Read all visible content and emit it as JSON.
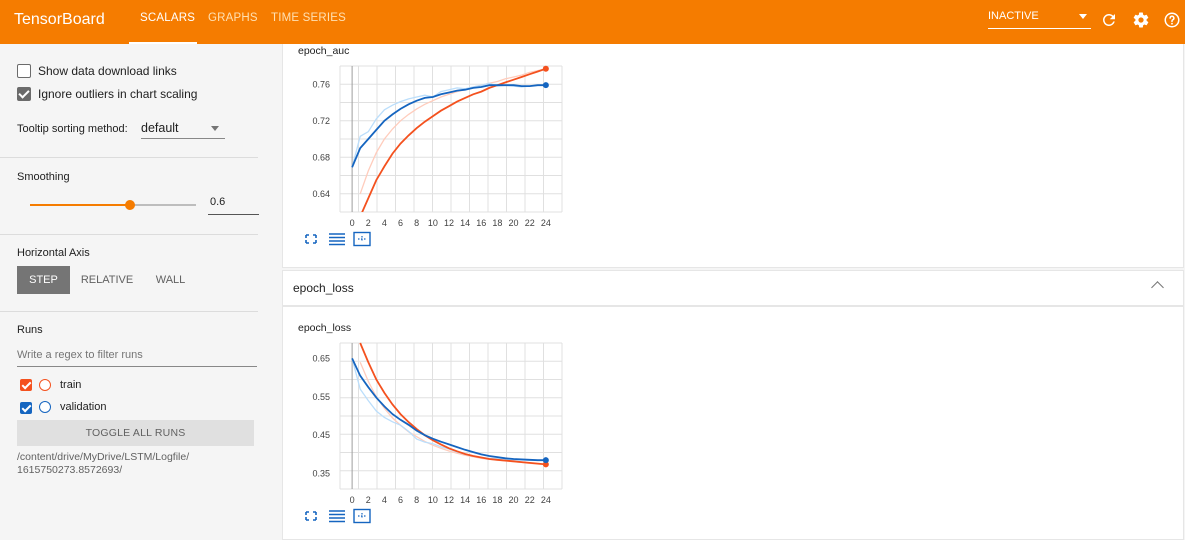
{
  "header": {
    "brand": "TensorBoard",
    "tabs": [
      {
        "label": "SCALARS",
        "active": true
      },
      {
        "label": "GRAPHS",
        "active": false
      },
      {
        "label": "TIME SERIES",
        "active": false
      }
    ],
    "status_select": "INACTIVE",
    "icons": [
      "refresh-icon",
      "gear-icon",
      "help-icon"
    ],
    "accent_color": "#f57c00"
  },
  "sidebar": {
    "show_download_links": {
      "label": "Show data download links",
      "checked": false
    },
    "ignore_outliers": {
      "label": "Ignore outliers in chart scaling",
      "checked": true
    },
    "tooltip_sorting": {
      "label": "Tooltip sorting method:",
      "value": "default"
    },
    "smoothing": {
      "label": "Smoothing",
      "value": "0.6",
      "fraction": 0.6
    },
    "horizontal_axis": {
      "label": "Horizontal Axis",
      "options": [
        "STEP",
        "RELATIVE",
        "WALL"
      ],
      "selected": "STEP"
    },
    "runs": {
      "label": "Runs",
      "filter_placeholder": "Write a regex to filter runs",
      "items": [
        {
          "name": "train",
          "checked": true,
          "color": "#f4511e"
        },
        {
          "name": "validation",
          "checked": true,
          "color": "#1565c0"
        }
      ],
      "toggle_all_label": "TOGGLE ALL RUNS",
      "logdir": "/content/drive/MyDrive/LSTM/Logfile/\n1615750273.8572693/"
    }
  },
  "main": {
    "group_header": "epoch_loss",
    "charts": [
      {
        "title": "epoch_auc"
      },
      {
        "title": "epoch_loss"
      }
    ]
  },
  "chart_data": [
    {
      "type": "line",
      "title": "epoch_auc",
      "x_ticks": [
        "0",
        "2",
        "4",
        "6",
        "8",
        "10",
        "12",
        "14",
        "16",
        "18",
        "20",
        "22",
        "24"
      ],
      "y_ticks": [
        "0.64",
        "0.68",
        "0.72",
        "0.76"
      ],
      "xlim": [
        -1.5,
        26
      ],
      "ylim": [
        0.62,
        0.78
      ],
      "grid": true,
      "series": [
        {
          "name": "train",
          "color": "#f4511e",
          "raw_color": "#ffccbc",
          "x": [
            1,
            2,
            3,
            4,
            5,
            6,
            7,
            8,
            9,
            10,
            11,
            12,
            13,
            14,
            15,
            16,
            17,
            18,
            19,
            20,
            21,
            22,
            23,
            24
          ],
          "values": [
            0.615,
            0.635,
            0.655,
            0.67,
            0.684,
            0.695,
            0.704,
            0.712,
            0.719,
            0.725,
            0.731,
            0.736,
            0.741,
            0.745,
            0.749,
            0.752,
            0.756,
            0.759,
            0.762,
            0.765,
            0.768,
            0.771,
            0.774,
            0.777
          ],
          "raw": [
            0.64,
            0.665,
            0.685,
            0.7,
            0.711,
            0.72,
            0.727,
            0.733,
            0.738,
            0.742,
            0.746,
            0.749,
            0.752,
            0.754,
            0.757,
            0.759,
            0.761,
            0.763,
            0.766,
            0.768,
            0.77,
            0.773,
            0.775,
            0.777
          ]
        },
        {
          "name": "validation",
          "color": "#1565c0",
          "raw_color": "#bbdefb",
          "x": [
            0,
            1,
            2,
            3,
            4,
            5,
            6,
            7,
            8,
            9,
            10,
            11,
            12,
            13,
            14,
            15,
            16,
            17,
            18,
            19,
            20,
            21,
            22,
            23,
            24
          ],
          "values": [
            0.669,
            0.69,
            0.7,
            0.71,
            0.72,
            0.727,
            0.733,
            0.738,
            0.742,
            0.745,
            0.746,
            0.749,
            0.751,
            0.753,
            0.754,
            0.756,
            0.757,
            0.759,
            0.759,
            0.759,
            0.759,
            0.758,
            0.758,
            0.759,
            0.759
          ],
          "raw": [
            0.669,
            0.703,
            0.708,
            0.722,
            0.732,
            0.737,
            0.741,
            0.744,
            0.746,
            0.748,
            0.746,
            0.752,
            0.754,
            0.756,
            0.755,
            0.757,
            0.759,
            0.761,
            0.758,
            0.759,
            0.758,
            0.757,
            0.758,
            0.759,
            0.759
          ]
        }
      ]
    },
    {
      "type": "line",
      "title": "epoch_loss",
      "x_ticks": [
        "0",
        "2",
        "4",
        "6",
        "8",
        "10",
        "12",
        "14",
        "16",
        "18",
        "20",
        "22",
        "24"
      ],
      "y_ticks": [
        "0.35",
        "0.45",
        "0.55",
        "0.65"
      ],
      "xlim": [
        -1.5,
        26
      ],
      "ylim": [
        0.31,
        0.69
      ],
      "grid": true,
      "series": [
        {
          "name": "train",
          "color": "#f4511e",
          "raw_color": "#ffccbc",
          "x": [
            1,
            2,
            3,
            4,
            5,
            6,
            7,
            8,
            9,
            10,
            11,
            12,
            13,
            14,
            15,
            16,
            17,
            18,
            19,
            20,
            21,
            22,
            23,
            24
          ],
          "values": [
            0.69,
            0.64,
            0.595,
            0.56,
            0.53,
            0.505,
            0.484,
            0.466,
            0.45,
            0.437,
            0.426,
            0.416,
            0.408,
            0.401,
            0.396,
            0.392,
            0.388,
            0.386,
            0.384,
            0.382,
            0.38,
            0.378,
            0.376,
            0.374
          ],
          "raw": [
            0.64,
            0.59,
            0.55,
            0.52,
            0.495,
            0.476,
            0.459,
            0.446,
            0.434,
            0.424,
            0.416,
            0.409,
            0.403,
            0.398,
            0.394,
            0.39,
            0.387,
            0.385,
            0.383,
            0.381,
            0.379,
            0.377,
            0.375,
            0.374
          ]
        },
        {
          "name": "validation",
          "color": "#1565c0",
          "raw_color": "#bbdefb",
          "x": [
            0,
            1,
            2,
            3,
            4,
            5,
            6,
            7,
            8,
            9,
            10,
            11,
            12,
            13,
            14,
            15,
            16,
            17,
            18,
            19,
            20,
            21,
            22,
            23,
            24
          ],
          "values": [
            0.65,
            0.605,
            0.575,
            0.548,
            0.525,
            0.505,
            0.49,
            0.477,
            0.462,
            0.45,
            0.441,
            0.433,
            0.426,
            0.419,
            0.412,
            0.406,
            0.4,
            0.396,
            0.393,
            0.39,
            0.388,
            0.387,
            0.386,
            0.385,
            0.385
          ],
          "raw": [
            0.65,
            0.57,
            0.54,
            0.513,
            0.496,
            0.485,
            0.476,
            0.46,
            0.44,
            0.432,
            0.428,
            0.42,
            0.414,
            0.406,
            0.4,
            0.395,
            0.392,
            0.39,
            0.389,
            0.387,
            0.386,
            0.385,
            0.385,
            0.385,
            0.385
          ]
        }
      ]
    }
  ]
}
